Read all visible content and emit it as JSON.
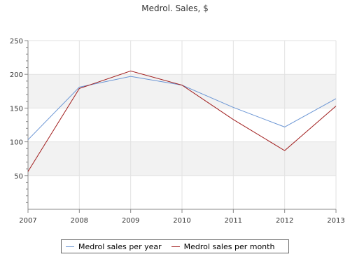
{
  "chart_data": {
    "type": "line",
    "title": "Medrol. Sales, $",
    "x": [
      "2007",
      "2008",
      "2009",
      "2010",
      "2011",
      "2012",
      "2013"
    ],
    "ylim": [
      0,
      250
    ],
    "yticks": [
      50,
      100,
      150,
      200,
      250
    ],
    "grid": true,
    "legend_position": "bottom",
    "series": [
      {
        "name": "Medrol sales per year",
        "color": "#6a95d4",
        "values": [
          103,
          181,
          197,
          184,
          151,
          122,
          164
        ]
      },
      {
        "name": "Medrol sales per month",
        "color": "#a01c1c",
        "values": [
          56,
          179,
          205,
          184,
          133,
          87,
          153
        ]
      }
    ]
  }
}
